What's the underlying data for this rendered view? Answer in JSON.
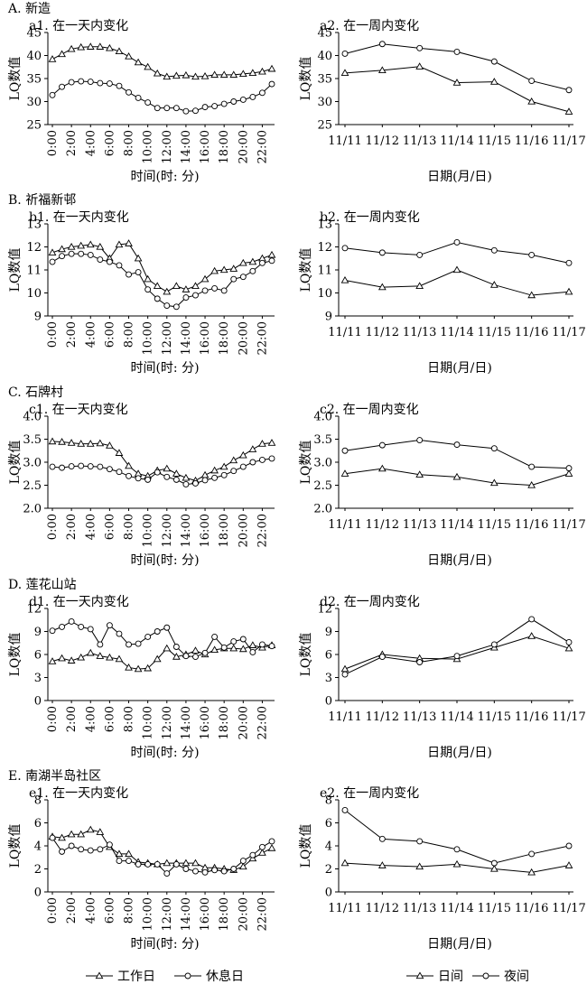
{
  "legend": {
    "left": [
      {
        "marker": "triangle",
        "label": "工作日"
      },
      {
        "marker": "circle",
        "label": "休息日"
      }
    ],
    "right": [
      {
        "marker": "triangle",
        "label": "日间"
      },
      {
        "marker": "circle",
        "label": "夜间"
      }
    ]
  },
  "sections": [
    {
      "label": "A. 新造",
      "day": {
        "title": "a1. 在一天内变化",
        "ylabel": "LQ数值",
        "xlabel": "时间(时: 分)",
        "ylim": [
          25,
          45
        ],
        "yticks": [
          25,
          30,
          35,
          40,
          45
        ],
        "ytick_labels": [
          "25",
          "30",
          "35",
          "40",
          "45"
        ],
        "series": [
          {
            "marker": "triangle",
            "values": [
              39.2,
              40.3,
              41.4,
              41.8,
              41.9,
              41.9,
              41.6,
              40.9,
              39.8,
              38.5,
              37.5,
              36.1,
              35.4,
              35.6,
              35.7,
              35.4,
              35.5,
              35.8,
              35.8,
              35.8,
              36.0,
              36.2,
              36.5,
              37.1
            ]
          },
          {
            "marker": "circle",
            "values": [
              31.4,
              33.2,
              34.2,
              34.4,
              34.3,
              34.0,
              33.9,
              33.4,
              32.0,
              30.8,
              29.8,
              28.6,
              28.6,
              28.6,
              27.9,
              28.0,
              28.8,
              29.0,
              29.5,
              30.0,
              30.4,
              31.0,
              31.9,
              33.8
            ]
          }
        ]
      },
      "week": {
        "title": "a2. 在一周内变化",
        "ylabel": "LQ数值",
        "xlabel": "日期(月/日)",
        "ylim": [
          25,
          45
        ],
        "yticks": [
          25,
          30,
          35,
          40,
          45
        ],
        "ytick_labels": [
          "25",
          "30",
          "35",
          "40",
          "45"
        ],
        "series": [
          {
            "marker": "triangle",
            "values": [
              36.2,
              36.8,
              37.6,
              34.1,
              34.3,
              30.0,
              27.8
            ]
          },
          {
            "marker": "circle",
            "values": [
              40.4,
              42.5,
              41.6,
              40.8,
              38.7,
              34.5,
              32.5
            ]
          }
        ]
      }
    },
    {
      "label": "B. 祈福新邨",
      "day": {
        "title": "b1. 在一天内变化",
        "ylabel": "LQ数值",
        "xlabel": "时间(时: 分)",
        "ylim": [
          9,
          13
        ],
        "yticks": [
          9,
          10,
          11,
          12,
          13
        ],
        "ytick_labels": [
          "9",
          "10",
          "11",
          "12",
          "13"
        ],
        "series": [
          {
            "marker": "triangle",
            "values": [
              11.75,
              11.9,
              12.0,
              12.05,
              12.1,
              12.0,
              11.5,
              12.1,
              12.15,
              11.5,
              10.6,
              10.3,
              10.05,
              10.3,
              10.15,
              10.3,
              10.6,
              10.95,
              11.0,
              11.05,
              11.3,
              11.35,
              11.5,
              11.65
            ]
          },
          {
            "marker": "circle",
            "values": [
              11.35,
              11.6,
              11.7,
              11.7,
              11.65,
              11.45,
              11.35,
              11.2,
              10.8,
              10.9,
              10.15,
              9.75,
              9.45,
              9.4,
              9.8,
              9.9,
              10.1,
              10.2,
              10.1,
              10.6,
              10.7,
              10.95,
              11.3,
              11.4
            ]
          }
        ]
      },
      "week": {
        "title": "b2. 在一周内变化",
        "ylabel": "LQ数值",
        "xlabel": "日期(月/日)",
        "ylim": [
          9,
          13
        ],
        "yticks": [
          9,
          10,
          11,
          12,
          13
        ],
        "ytick_labels": [
          "9",
          "10",
          "11",
          "12",
          "13"
        ],
        "series": [
          {
            "marker": "triangle",
            "values": [
              10.55,
              10.25,
              10.3,
              11.0,
              10.35,
              9.9,
              10.05
            ]
          },
          {
            "marker": "circle",
            "values": [
              11.95,
              11.75,
              11.65,
              12.2,
              11.85,
              11.65,
              11.3
            ]
          }
        ]
      }
    },
    {
      "label": "C. 石牌村",
      "day": {
        "title": "c1. 在一天内变化",
        "ylabel": "LQ数值",
        "xlabel": "时间(时: 分)",
        "ylim": [
          2.0,
          4.0
        ],
        "yticks": [
          2.0,
          2.5,
          3.0,
          3.5,
          4.0
        ],
        "ytick_labels": [
          "2.0",
          "2.5",
          "3.0",
          "3.5",
          "4.0"
        ],
        "series": [
          {
            "marker": "triangle",
            "values": [
              3.45,
              3.44,
              3.42,
              3.4,
              3.4,
              3.41,
              3.36,
              3.2,
              2.92,
              2.75,
              2.7,
              2.82,
              2.86,
              2.75,
              2.66,
              2.6,
              2.72,
              2.82,
              2.9,
              3.04,
              3.15,
              3.28,
              3.4,
              3.42
            ]
          },
          {
            "marker": "circle",
            "values": [
              2.9,
              2.88,
              2.91,
              2.92,
              2.91,
              2.9,
              2.85,
              2.79,
              2.7,
              2.65,
              2.62,
              2.78,
              2.68,
              2.62,
              2.52,
              2.54,
              2.61,
              2.66,
              2.72,
              2.81,
              2.9,
              3.0,
              3.05,
              3.08
            ]
          }
        ]
      },
      "week": {
        "title": "c2. 在一周内变化",
        "ylabel": "LQ数值",
        "xlabel": "日期(月/日)",
        "ylim": [
          2.0,
          4.0
        ],
        "yticks": [
          2.0,
          2.5,
          3.0,
          3.5,
          4.0
        ],
        "ytick_labels": [
          "2.0",
          "2.5",
          "3.0",
          "3.5",
          "4.0"
        ],
        "series": [
          {
            "marker": "triangle",
            "values": [
              2.75,
              2.86,
              2.73,
              2.68,
              2.55,
              2.5,
              2.75
            ]
          },
          {
            "marker": "circle",
            "values": [
              3.25,
              3.37,
              3.48,
              3.38,
              3.3,
              2.9,
              2.87
            ]
          }
        ]
      }
    },
    {
      "label": "D. 莲花山站",
      "day": {
        "title": "d1. 在一天内变化",
        "ylabel": "LQ数值",
        "xlabel": "时间(时: 分)",
        "ylim": [
          0,
          12
        ],
        "yticks": [
          0,
          3,
          6,
          9,
          12
        ],
        "ytick_labels": [
          "0",
          "3",
          "6",
          "9",
          "12"
        ],
        "series": [
          {
            "marker": "triangle",
            "values": [
              5.1,
              5.5,
              5.2,
              5.6,
              6.2,
              5.8,
              5.6,
              5.4,
              4.3,
              4.1,
              4.2,
              5.4,
              6.8,
              5.7,
              6.0,
              6.5,
              6.0,
              6.6,
              6.8,
              6.8,
              6.7,
              7.2,
              6.9,
              7.2
            ]
          },
          {
            "marker": "circle",
            "values": [
              9.1,
              9.6,
              10.3,
              9.6,
              9.3,
              7.3,
              9.8,
              8.7,
              7.3,
              7.4,
              8.3,
              9.0,
              9.5,
              7.0,
              5.8,
              5.7,
              6.2,
              8.3,
              6.9,
              7.7,
              8.0,
              6.3,
              7.3,
              7.1
            ]
          }
        ]
      },
      "week": {
        "title": "d2. 在一周内变化",
        "ylabel": "LQ数值",
        "xlabel": "日期(月/日)",
        "ylim": [
          0,
          12
        ],
        "yticks": [
          0,
          3,
          6,
          9,
          12
        ],
        "ytick_labels": [
          "0",
          "3",
          "6",
          "9",
          "12"
        ],
        "series": [
          {
            "marker": "triangle",
            "values": [
              4.1,
              6.0,
              5.5,
              5.4,
              6.9,
              8.4,
              6.8
            ]
          },
          {
            "marker": "circle",
            "values": [
              3.4,
              5.7,
              5.0,
              5.8,
              7.3,
              10.6,
              7.6
            ]
          }
        ]
      }
    },
    {
      "label": "E. 南湖半岛社区",
      "day": {
        "title": "e1. 在一天内变化",
        "ylabel": "LQ数值",
        "xlabel": "时间(时: 分)",
        "ylim": [
          0,
          8
        ],
        "yticks": [
          0,
          2,
          4,
          6,
          8
        ],
        "ytick_labels": [
          "0",
          "2",
          "4",
          "6",
          "8"
        ],
        "series": [
          {
            "marker": "triangle",
            "values": [
              4.8,
              4.7,
              5.0,
              5.0,
              5.4,
              5.2,
              3.9,
              3.3,
              3.3,
              2.6,
              2.5,
              2.4,
              2.5,
              2.5,
              2.5,
              2.5,
              2.1,
              2.1,
              2.0,
              1.9,
              2.2,
              2.9,
              3.4,
              3.8
            ]
          },
          {
            "marker": "circle",
            "values": [
              4.7,
              3.5,
              4.0,
              3.7,
              3.6,
              3.7,
              4.1,
              2.7,
              2.7,
              2.4,
              2.4,
              2.4,
              1.6,
              2.4,
              2.0,
              1.8,
              1.7,
              1.9,
              1.8,
              2.0,
              2.7,
              3.2,
              3.9,
              4.4
            ]
          }
        ]
      },
      "week": {
        "title": "e2. 在一周内变化",
        "ylabel": "LQ数值",
        "xlabel": "日期(月/日)",
        "ylim": [
          0,
          8
        ],
        "yticks": [
          0,
          2,
          4,
          6,
          8
        ],
        "ytick_labels": [
          "0",
          "2",
          "4",
          "6",
          "8"
        ],
        "series": [
          {
            "marker": "triangle",
            "values": [
              2.5,
              2.3,
              2.2,
              2.4,
              2.0,
              1.7,
              2.3
            ]
          },
          {
            "marker": "circle",
            "values": [
              7.1,
              4.6,
              4.4,
              3.7,
              2.5,
              3.3,
              4.0
            ]
          }
        ]
      }
    }
  ],
  "chart_data": [
    {
      "type": "line",
      "title": "a1. 在一天内变化",
      "xlabel": "时间(时: 分)",
      "ylabel": "LQ数值",
      "x": [
        "0:00",
        "2:00",
        "4:00",
        "6:00",
        "8:00",
        "10:00",
        "12:00",
        "14:00",
        "16:00",
        "18:00",
        "20:00",
        "22:00"
      ],
      "ylim": [
        25,
        45
      ]
    },
    {
      "type": "line",
      "title": "a2. 在一周内变化",
      "xlabel": "日期(月/日)",
      "ylabel": "LQ数值",
      "x": [
        "11/11",
        "11/12",
        "11/13",
        "11/14",
        "11/15",
        "11/16",
        "11/17"
      ],
      "ylim": [
        25,
        45
      ]
    },
    {
      "type": "line",
      "title": "b1. 在一天内变化",
      "xlabel": "时间(时: 分)",
      "ylabel": "LQ数值",
      "ylim": [
        9,
        13
      ]
    },
    {
      "type": "line",
      "title": "b2. 在一周内变化",
      "xlabel": "日期(月/日)",
      "ylabel": "LQ数值",
      "ylim": [
        9,
        13
      ]
    },
    {
      "type": "line",
      "title": "c1. 在一天内变化",
      "xlabel": "时间(时: 分)",
      "ylabel": "LQ数值",
      "ylim": [
        2.0,
        4.0
      ]
    },
    {
      "type": "line",
      "title": "c2. 在一周内变化",
      "xlabel": "日期(月/日)",
      "ylabel": "LQ数值",
      "ylim": [
        2.0,
        4.0
      ]
    },
    {
      "type": "line",
      "title": "d1. 在一天内变化",
      "xlabel": "时间(时: 分)",
      "ylabel": "LQ数值",
      "ylim": [
        0,
        12
      ]
    },
    {
      "type": "line",
      "title": "d2. 在一周内变化",
      "xlabel": "日期(月/日)",
      "ylabel": "LQ数值",
      "ylim": [
        0,
        12
      ]
    },
    {
      "type": "line",
      "title": "e1. 在一天内变化",
      "xlabel": "时间(时: 分)",
      "ylabel": "LQ数值",
      "ylim": [
        0,
        8
      ]
    },
    {
      "type": "line",
      "title": "e2. 在一周内变化",
      "xlabel": "日期(月/日)",
      "ylabel": "LQ数值",
      "ylim": [
        0,
        8
      ]
    }
  ],
  "axes": {
    "day_ticks": [
      "0:00",
      "2:00",
      "4:00",
      "6:00",
      "8:00",
      "10:00",
      "12:00",
      "14:00",
      "16:00",
      "18:00",
      "20:00",
      "22:00"
    ],
    "week_ticks": [
      "11/11",
      "11/12",
      "11/13",
      "11/14",
      "11/15",
      "11/16",
      "11/17"
    ]
  }
}
